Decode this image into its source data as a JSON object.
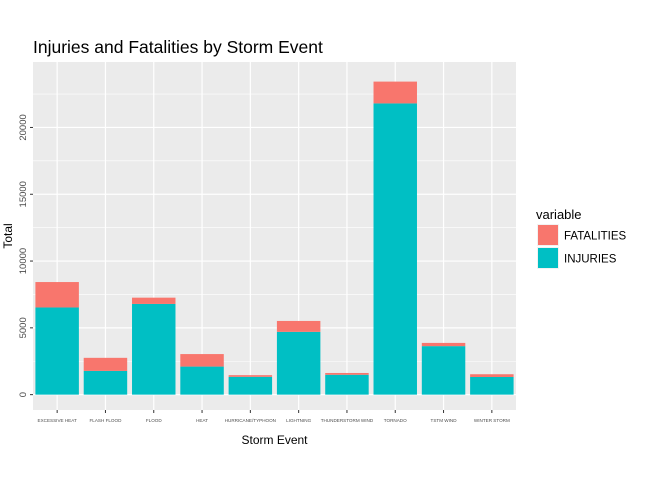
{
  "chart_data": {
    "type": "bar",
    "stacked": true,
    "title": "Injuries and Fatalities by Storm Event",
    "xlabel": "Storm Event",
    "ylabel": "Total",
    "ylim": [
      -1150,
      24900
    ],
    "yticks": [
      0,
      5000,
      10000,
      15000,
      20000
    ],
    "grid": true,
    "legend_position": "right",
    "legend_title": "variable",
    "categories": [
      "EXCESSIVE HEAT",
      "FLASH FLOOD",
      "FLOOD",
      "HEAT",
      "HURRICANE/TYPHOON",
      "LIGHTNING",
      "THUNDERSTORM WIND",
      "TORNADO",
      "TSTM WIND",
      "WINTER STORM"
    ],
    "series": [
      {
        "name": "INJURIES",
        "color": "#00BFC4",
        "values": [
          6525,
          1777,
          6789,
          2100,
          1333,
          4700,
          1488,
          21800,
          3631,
          1321
        ]
      },
      {
        "name": "FATALITIES",
        "color": "#F8766D",
        "values": [
          1903,
          978,
          470,
          937,
          125,
          816,
          133,
          1633,
          241,
          206
        ]
      }
    ],
    "legend_order": [
      "FATALITIES",
      "INJURIES"
    ]
  }
}
